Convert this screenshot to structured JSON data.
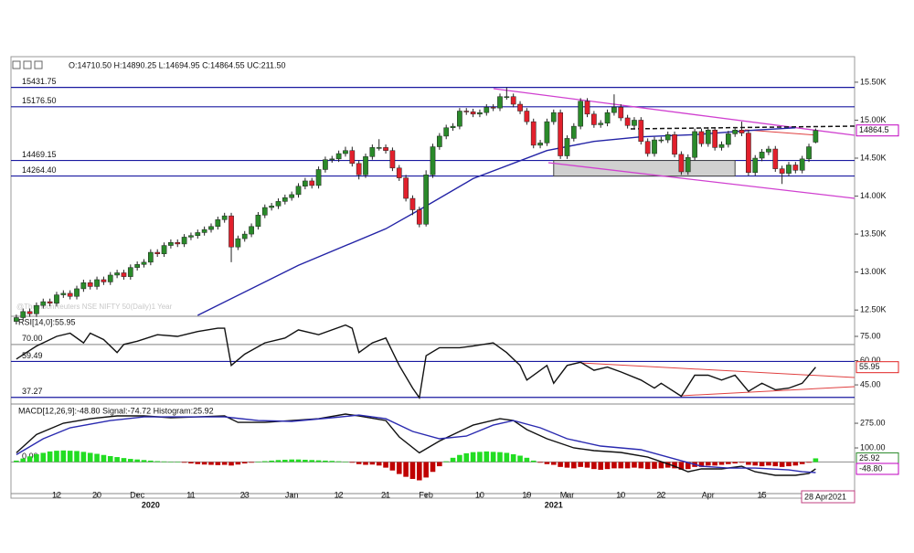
{
  "chart_data": [
    {
      "type": "candlestick",
      "info": "O:14710.50 H:14890.25 L:14694.95 C:14864.55 UC:211.50",
      "watermark": "@ThomsonReuters NSE NIFTY 50(Daily)1 Year",
      "up_color": "#2a8a2a",
      "down_color": "#e2202c",
      "xlim": [
        -0.8,
        124.8
      ],
      "ylim": [
        12430,
        15800
      ],
      "yticks": [
        {
          "value": 12500,
          "label": "12.50K"
        },
        {
          "value": 13000,
          "label": "13.00K"
        },
        {
          "value": 13500,
          "label": "13.50K"
        },
        {
          "value": 14000,
          "label": "14.00K"
        },
        {
          "value": 14500,
          "label": "14.50K"
        },
        {
          "value": 15000,
          "label": "15.00K"
        },
        {
          "value": 15500,
          "label": "15.50K"
        }
      ],
      "levels": [
        {
          "value": 15431.75,
          "label": "15431.75"
        },
        {
          "value": 15176.5,
          "label": "15176.50"
        },
        {
          "value": 14469.15,
          "label": "14469.15"
        },
        {
          "value": 14264.4,
          "label": "14264.40"
        }
      ],
      "level_color": "#1a1aa0",
      "xticks": [
        {
          "value": 6,
          "label": "12"
        },
        {
          "value": 12,
          "label": "20"
        },
        {
          "value": 18,
          "label": "Dec"
        },
        {
          "value": 26,
          "label": "11"
        },
        {
          "value": 34,
          "label": "23"
        },
        {
          "value": 41,
          "label": "Jan"
        },
        {
          "value": 48,
          "label": "12"
        },
        {
          "value": 55,
          "label": "21"
        },
        {
          "value": 61,
          "label": "Feb"
        },
        {
          "value": 69,
          "label": "10"
        },
        {
          "value": 76,
          "label": "19"
        },
        {
          "value": 82,
          "label": "Mar"
        },
        {
          "value": 90,
          "label": "10"
        },
        {
          "value": 96,
          "label": "22"
        },
        {
          "value": 103,
          "label": "Apr"
        },
        {
          "value": 111,
          "label": "15"
        }
      ],
      "years": [
        {
          "value": 20,
          "label": "2020"
        },
        {
          "value": 80,
          "label": "2021"
        }
      ],
      "date_label": "28 Apr2021",
      "last_label": "14864.5",
      "open": [
        12350,
        12400,
        12480,
        12450,
        12560,
        12610,
        12590,
        12700,
        12720,
        12680,
        12780,
        12860,
        12810,
        12900,
        12870,
        12960,
        12990,
        12940,
        13060,
        13100,
        13130,
        13260,
        13240,
        13350,
        13390,
        13370,
        13460,
        13480,
        13520,
        13560,
        13600,
        13690,
        13740,
        13330,
        13440,
        13500,
        13600,
        13750,
        13850,
        13870,
        13930,
        13980,
        14020,
        14130,
        14200,
        14140,
        14350,
        14480,
        14490,
        14560,
        14600,
        14430,
        14280,
        14520,
        14640,
        14640,
        14600,
        14370,
        14240,
        13970,
        13820,
        13630,
        14280,
        14650,
        14790,
        14900,
        14920,
        15120,
        15110,
        15080,
        15100,
        15170,
        15160,
        15310,
        15310,
        15210,
        15120,
        14980,
        14670,
        14700,
        14980,
        15100,
        14530,
        14760,
        14920,
        15250,
        15080,
        14940,
        14960,
        15100,
        15170,
        15030,
        14930,
        15000,
        14720,
        14560,
        14740,
        14740,
        14810,
        14550,
        14320,
        14510,
        14850,
        14690,
        14870,
        14640,
        14680,
        14820,
        14870,
        14830,
        14310,
        14500,
        14580,
        14620,
        14360,
        14300,
        14410,
        14340,
        14490,
        14710.5
      ],
      "high": [
        12440,
        12520,
        12520,
        12600,
        12650,
        12650,
        12740,
        12760,
        12760,
        12820,
        12900,
        12900,
        12940,
        12940,
        13000,
        13030,
        13030,
        13100,
        13140,
        13170,
        13300,
        13300,
        13390,
        13430,
        13430,
        13500,
        13520,
        13560,
        13600,
        13640,
        13730,
        13780,
        13780,
        13480,
        13540,
        13640,
        13790,
        13890,
        13910,
        13970,
        14020,
        14060,
        14170,
        14240,
        14240,
        14390,
        14520,
        14530,
        14600,
        14650,
        14650,
        14470,
        14560,
        14680,
        14750,
        14680,
        14640,
        14410,
        14280,
        14010,
        13860,
        14340,
        14690,
        14830,
        14940,
        14960,
        15160,
        15160,
        15150,
        15140,
        15210,
        15210,
        15350,
        15430,
        15350,
        15250,
        15160,
        15020,
        14740,
        15020,
        15140,
        15140,
        14800,
        14960,
        15290,
        15290,
        15120,
        15000,
        15140,
        15340,
        15210,
        15070,
        15040,
        15040,
        14760,
        14780,
        14780,
        14850,
        14850,
        14590,
        14550,
        14890,
        14890,
        14910,
        14910,
        14720,
        14860,
        14910,
        14980,
        14870,
        14540,
        14620,
        14660,
        14660,
        14400,
        14450,
        14450,
        14530,
        14690,
        14890.25
      ],
      "low": [
        12310,
        12360,
        12410,
        12410,
        12520,
        12550,
        12550,
        12660,
        12640,
        12640,
        12740,
        12770,
        12770,
        12830,
        12830,
        12920,
        12900,
        12900,
        13020,
        13060,
        13090,
        13200,
        13200,
        13310,
        13330,
        13330,
        13420,
        13440,
        13480,
        13520,
        13560,
        13650,
        13130,
        13290,
        13400,
        13460,
        13560,
        13710,
        13810,
        13830,
        13890,
        13940,
        13980,
        14090,
        14100,
        14100,
        14310,
        14440,
        14450,
        14520,
        14390,
        14220,
        14240,
        14480,
        14600,
        14560,
        14330,
        14200,
        13930,
        13750,
        13590,
        13600,
        14240,
        14610,
        14750,
        14860,
        14880,
        15070,
        15040,
        15040,
        15060,
        15120,
        15120,
        15270,
        15170,
        15080,
        14940,
        14630,
        14630,
        14660,
        14940,
        14490,
        14490,
        14720,
        14880,
        15040,
        14900,
        14900,
        14920,
        15060,
        14990,
        14890,
        14890,
        14680,
        14520,
        14520,
        14700,
        14700,
        14510,
        14280,
        14280,
        14470,
        14650,
        14650,
        14600,
        14600,
        14640,
        14780,
        14790,
        14270,
        14270,
        14460,
        14540,
        14320,
        14160,
        14260,
        14300,
        14300,
        14450,
        14694.95
      ],
      "close": [
        12400,
        12480,
        12450,
        12560,
        12610,
        12590,
        12700,
        12720,
        12680,
        12780,
        12860,
        12810,
        12900,
        12870,
        12960,
        12990,
        12940,
        13060,
        13100,
        13130,
        13260,
        13240,
        13350,
        13390,
        13370,
        13460,
        13480,
        13520,
        13560,
        13600,
        13690,
        13740,
        13330,
        13440,
        13500,
        13600,
        13750,
        13850,
        13870,
        13930,
        13980,
        14020,
        14130,
        14200,
        14140,
        14350,
        14480,
        14490,
        14560,
        14600,
        14430,
        14280,
        14520,
        14640,
        14640,
        14600,
        14370,
        14240,
        13970,
        13820,
        13630,
        14280,
        14650,
        14790,
        14900,
        14920,
        15120,
        15110,
        15080,
        15100,
        15170,
        15160,
        15310,
        15310,
        15210,
        15120,
        14980,
        14670,
        14700,
        14980,
        15100,
        14530,
        14760,
        14920,
        15250,
        15080,
        14940,
        14960,
        15100,
        15170,
        15030,
        14930,
        15000,
        14720,
        14560,
        14740,
        14740,
        14810,
        14550,
        14320,
        14510,
        14850,
        14690,
        14870,
        14640,
        14680,
        14820,
        14870,
        14830,
        14310,
        14500,
        14580,
        14620,
        14360,
        14300,
        14410,
        14340,
        14490,
        14650,
        14864.55
      ],
      "sma": {
        "color": "#2323a6",
        "x": [
          27,
          42,
          55,
          61,
          68,
          79,
          86,
          93,
          101,
          110,
          116
        ],
        "values": [
          12430,
          13090,
          13570,
          13870,
          14230,
          14600,
          14720,
          14780,
          14810,
          14870,
          14900
        ]
      }
    },
    {
      "type": "line",
      "title": "RSI[14,0]:55.95",
      "color": "#111111",
      "ylim": [
        34.3,
        86.3
      ],
      "yticks": [
        {
          "value": 75,
          "label": "75.00"
        },
        {
          "value": 60,
          "label": "60.00"
        },
        {
          "value": 45,
          "label": "45.00"
        }
      ],
      "levels": [
        {
          "value": 70,
          "label": "70.00",
          "color": "#9a9a9a"
        },
        {
          "value": 59.49,
          "label": "59.49",
          "color": "#1a1aa0"
        },
        {
          "value": 37.27,
          "label": "37.27",
          "color": "#1a1aa0"
        }
      ],
      "x": [
        0,
        3,
        6,
        8,
        10,
        11,
        13,
        15,
        16,
        18,
        21,
        24,
        27,
        30,
        31,
        32,
        34,
        37,
        40,
        42,
        45,
        49,
        50,
        51,
        53,
        55,
        57,
        59,
        60,
        61,
        63,
        66,
        68,
        71,
        73,
        75,
        76,
        79,
        80,
        82,
        84,
        86,
        88,
        90,
        93,
        95,
        96,
        99,
        101,
        103,
        105,
        107,
        109,
        111,
        113,
        115,
        117,
        119
      ],
      "values": [
        61,
        69,
        75,
        77,
        71,
        77,
        73,
        65,
        70,
        72,
        76,
        75,
        78,
        80,
        80,
        57,
        64,
        71,
        74,
        79,
        76,
        82,
        80,
        65,
        71,
        74,
        57,
        43,
        37,
        63,
        68,
        68,
        69,
        71,
        65,
        57,
        48,
        57,
        46,
        57,
        59,
        54,
        56,
        53,
        48,
        43,
        46,
        38,
        51,
        51,
        48,
        51,
        41,
        46,
        42,
        43,
        46,
        55.95
      ]
    },
    {
      "type": "macd",
      "title": "MACD[12,26,9]:-48.80 Signal:-74.72 Histogram:25.92",
      "ylim": [
        -224,
        405
      ],
      "yticks": [
        {
          "value": 275,
          "label": "275.00"
        },
        {
          "value": 100,
          "label": "100.00"
        }
      ],
      "levels": [
        {
          "value": 0,
          "label": "0.00",
          "color": "#9a9a9a"
        }
      ],
      "series": [
        {
          "color": "#111111",
          "last_label": "-48.80",
          "x": [
            0,
            3,
            7,
            11,
            15,
            19,
            23,
            27,
            31,
            33,
            37,
            41,
            45,
            49,
            51,
            55,
            57,
            60,
            63,
            66,
            68,
            72,
            74,
            76,
            79,
            83,
            86,
            90,
            94,
            98,
            100,
            102,
            105,
            108,
            110,
            113,
            116,
            118,
            119
          ],
          "values": [
            65,
            195,
            275,
            307,
            327,
            327,
            314,
            320,
            327,
            281,
            281,
            294,
            307,
            340,
            327,
            294,
            178,
            65,
            149,
            217,
            262,
            307,
            294,
            230,
            165,
            100,
            81,
            68,
            35,
            -30,
            -69,
            -49,
            -49,
            -30,
            -69,
            -94,
            -94,
            -81,
            -48.8
          ]
        },
        {
          "color": "#2a2ab0",
          "x": [
            0,
            4,
            8,
            14,
            19,
            25,
            31,
            36,
            41,
            47,
            51,
            55,
            59,
            63,
            67,
            71,
            74,
            78,
            82,
            87,
            93,
            98,
            102,
            106,
            110,
            115,
            117,
            119
          ],
          "values": [
            52,
            165,
            243,
            294,
            320,
            320,
            320,
            294,
            288,
            314,
            333,
            307,
            217,
            165,
            184,
            262,
            294,
            243,
            165,
            113,
            87,
            22,
            -30,
            -43,
            -43,
            -56,
            -69,
            -74.72
          ]
        }
      ],
      "histogram": {
        "up_color": "#22dd22",
        "down_color": "#c00000",
        "values": [
          10,
          25,
          40,
          55,
          65,
          75,
          80,
          82,
          80,
          78,
          72,
          65,
          58,
          50,
          42,
          35,
          28,
          22,
          18,
          14,
          10,
          6,
          4,
          2,
          0,
          -5,
          -10,
          -15,
          -18,
          -20,
          -22,
          -20,
          -25,
          -18,
          -10,
          -5,
          2,
          6,
          10,
          14,
          16,
          18,
          18,
          16,
          14,
          12,
          10,
          8,
          5,
          2,
          -5,
          -15,
          -20,
          -18,
          -25,
          -40,
          -60,
          -85,
          -105,
          -120,
          -130,
          -110,
          -70,
          -30,
          5,
          30,
          50,
          62,
          70,
          72,
          75,
          72,
          70,
          65,
          55,
          45,
          30,
          10,
          -5,
          -15,
          -20,
          -35,
          -40,
          -45,
          -35,
          -40,
          -50,
          -55,
          -50,
          -45,
          -45,
          -45,
          -40,
          -45,
          -50,
          -48,
          -45,
          -40,
          -45,
          -55,
          -50,
          -35,
          -35,
          -25,
          -25,
          -20,
          -15,
          -10,
          -5,
          -20,
          -25,
          -30,
          -25,
          -30,
          -35,
          -30,
          -25,
          -15,
          -5,
          25.92
        ]
      }
    }
  ]
}
